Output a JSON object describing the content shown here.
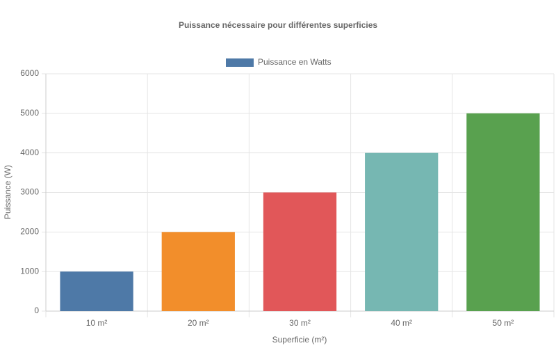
{
  "chart_data": {
    "type": "bar",
    "title": "Puissance nécessaire pour différentes superficies",
    "x_label": "Superficie (m²)",
    "y_label": "Puissance (W)",
    "categories": [
      "10 m²",
      "20 m²",
      "30 m²",
      "40 m²",
      "50 m²"
    ],
    "series": [
      {
        "name": "Puissance en Watts",
        "colors": [
          "#4e79a7",
          "#f28e2b",
          "#e15759",
          "#76b7b2",
          "#59a14f"
        ],
        "values": [
          1000,
          2000,
          3000,
          4000,
          5000
        ]
      }
    ],
    "ylim": [
      0,
      6000
    ],
    "yticks": [
      0,
      1000,
      2000,
      3000,
      4000,
      5000,
      6000
    ],
    "grid": true,
    "legend": "top"
  }
}
